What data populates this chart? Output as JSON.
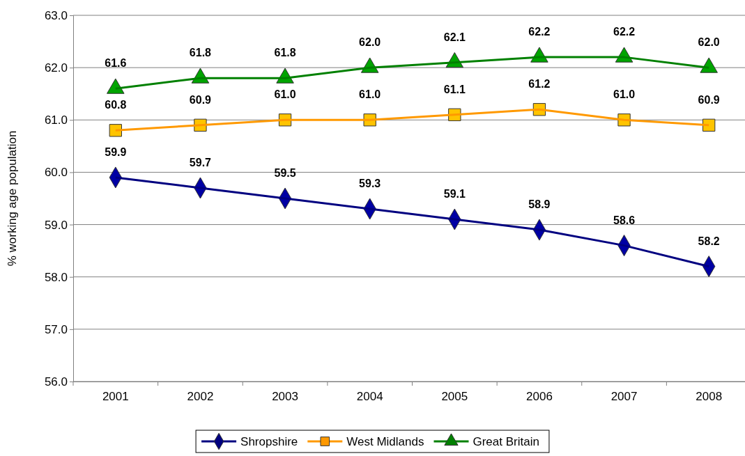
{
  "chart_data": {
    "type": "line",
    "ylabel": "% working age population",
    "categories": [
      "2001",
      "2002",
      "2003",
      "2004",
      "2005",
      "2006",
      "2007",
      "2008"
    ],
    "series": [
      {
        "name": "Shropshire",
        "color": "#000080",
        "marker": "diamond",
        "values": [
          59.9,
          59.7,
          59.5,
          59.3,
          59.1,
          58.9,
          58.6,
          58.2
        ],
        "value_labels": [
          "59.9",
          "59.7",
          "59.5",
          "59.3",
          "59.1",
          "58.9",
          "58.6",
          "58.2"
        ]
      },
      {
        "name": "West Midlands",
        "color": "#ff9900",
        "marker": "square",
        "values": [
          60.8,
          60.9,
          61.0,
          61.0,
          61.1,
          61.2,
          61.0,
          60.9
        ],
        "value_labels": [
          "60.8",
          "60.9",
          "61.0",
          "61.0",
          "61.1",
          "61.2",
          "61.0",
          "60.9"
        ]
      },
      {
        "name": "Great Britain",
        "color": "#008000",
        "marker": "triangle",
        "values": [
          61.6,
          61.8,
          61.8,
          62.0,
          62.1,
          62.2,
          62.2,
          62.0
        ],
        "value_labels": [
          "61.6",
          "61.8",
          "61.8",
          "62.0",
          "62.1",
          "62.2",
          "62.2",
          "62.0"
        ]
      }
    ],
    "ylim": [
      56,
      63
    ],
    "yticks": [
      {
        "value": 56,
        "label": "56.0"
      },
      {
        "value": 57,
        "label": "57.0"
      },
      {
        "value": 58,
        "label": "58.0"
      },
      {
        "value": 59,
        "label": "59.0"
      },
      {
        "value": 60,
        "label": "60.0"
      },
      {
        "value": 61,
        "label": "61.0"
      },
      {
        "value": 62,
        "label": "62.0"
      },
      {
        "value": 63,
        "label": "63.0"
      }
    ],
    "grid": "y",
    "legend": "bottom",
    "line_style": "solid"
  }
}
